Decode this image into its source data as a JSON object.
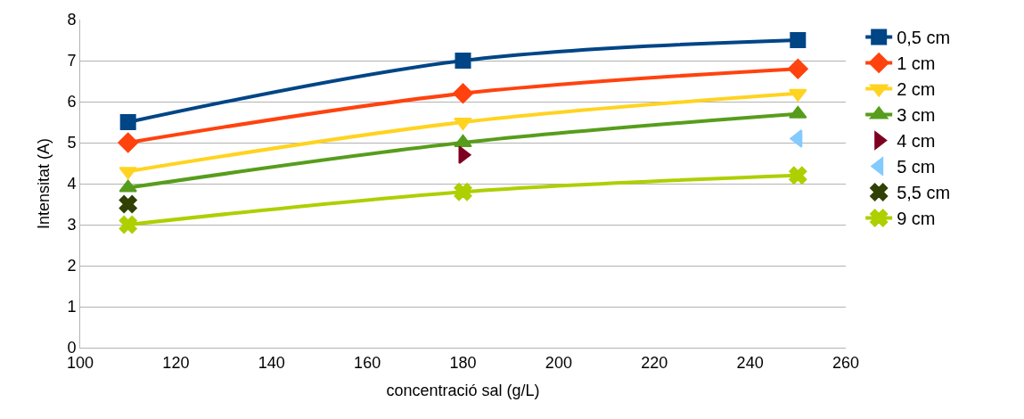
{
  "chart_data": {
    "type": "line",
    "xlabel": "concentració sal (g/L)",
    "ylabel": "Intensitat (A)",
    "x": [
      110,
      180,
      250
    ],
    "series": [
      {
        "name": "0,5 cm",
        "color": "#004586",
        "marker": "square",
        "values": [
          5.5,
          7.0,
          7.5
        ]
      },
      {
        "name": "1 cm",
        "color": "#ff420e",
        "marker": "diamond",
        "values": [
          5.0,
          6.2,
          6.8
        ]
      },
      {
        "name": "2 cm",
        "color": "#ffd320",
        "marker": "triangle-down",
        "values": [
          4.3,
          5.5,
          6.2
        ]
      },
      {
        "name": "3 cm",
        "color": "#579d1c",
        "marker": "triangle",
        "values": [
          3.9,
          5.0,
          5.7
        ]
      },
      {
        "name": "4 cm",
        "color": "#7e0021",
        "marker": "triangle-right",
        "values": [
          null,
          4.7,
          null
        ]
      },
      {
        "name": "5 cm",
        "color": "#83caff",
        "marker": "triangle-left",
        "values": [
          null,
          null,
          5.1
        ]
      },
      {
        "name": "5,5 cm",
        "color": "#314004",
        "marker": "cross",
        "values": [
          3.5,
          null,
          null
        ]
      },
      {
        "name": "9 cm",
        "color": "#aecf00",
        "marker": "cross",
        "values": [
          3.0,
          3.8,
          4.2
        ]
      }
    ],
    "xlim": [
      100,
      260
    ],
    "xticks": [
      100,
      120,
      140,
      160,
      180,
      200,
      220,
      240,
      260
    ],
    "ylim": [
      0,
      8
    ],
    "yticks": [
      0,
      1,
      2,
      3,
      4,
      5,
      6,
      7,
      8
    ],
    "grid": "y",
    "legend": "right",
    "line_style": "solid"
  }
}
